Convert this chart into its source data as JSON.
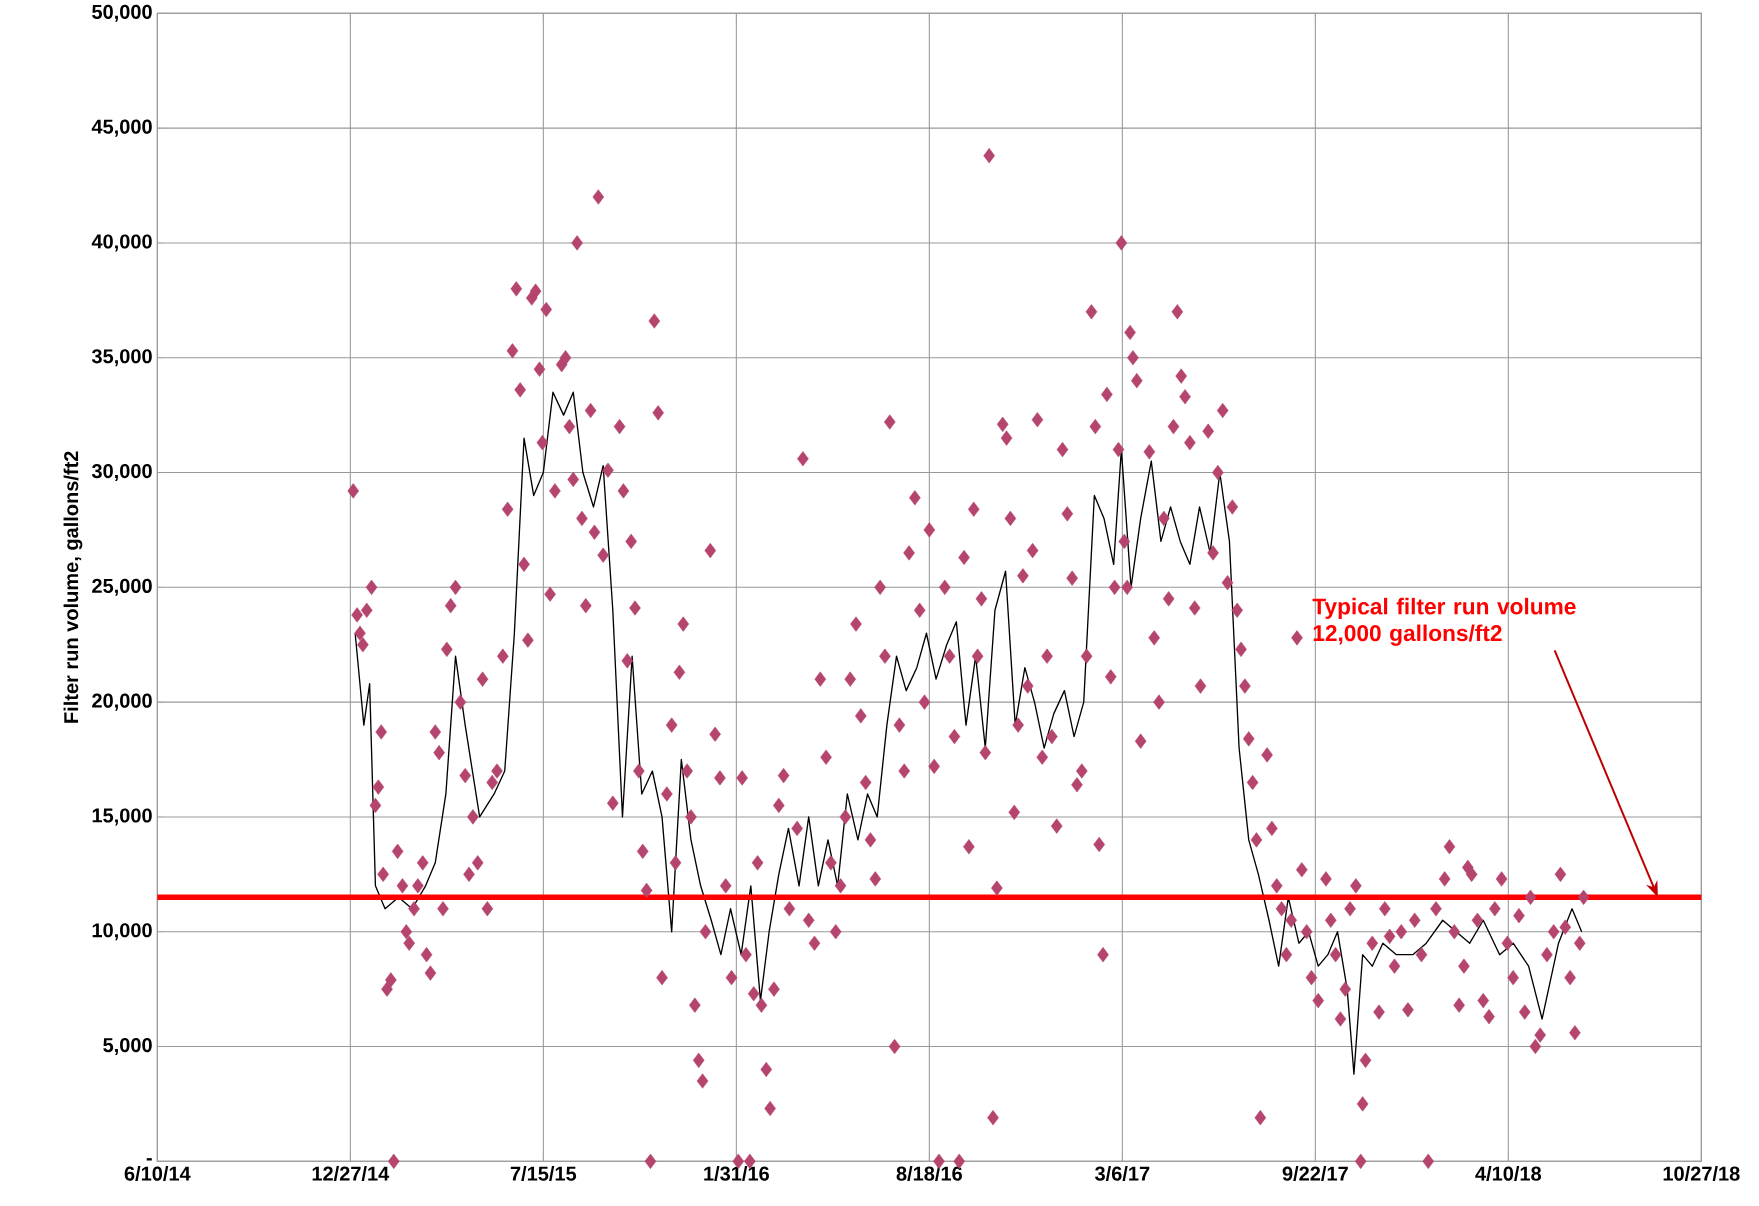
{
  "chart_data": {
    "type": "scatter",
    "ylabel": "Filter run volume, gallons/ft2",
    "xlim": [
      "2014-06-10",
      "2018-10-27"
    ],
    "xticks": [
      {
        "value": "2014-06-10",
        "label": "6/10/14"
      },
      {
        "value": "2014-12-27",
        "label": "12/27/14"
      },
      {
        "value": "2015-07-15",
        "label": "7/15/15"
      },
      {
        "value": "2016-01-31",
        "label": "1/31/16"
      },
      {
        "value": "2016-08-18",
        "label": "8/18/16"
      },
      {
        "value": "2017-03-06",
        "label": "3/6/17"
      },
      {
        "value": "2017-09-22",
        "label": "9/22/17"
      },
      {
        "value": "2018-04-10",
        "label": "4/10/18"
      },
      {
        "value": "2018-10-27",
        "label": "10/27/18"
      }
    ],
    "ylim": [
      0,
      50000
    ],
    "yticks": [
      {
        "value": 0,
        "label": "-"
      },
      {
        "value": 5000,
        "label": "5,000"
      },
      {
        "value": 10000,
        "label": "10,000"
      },
      {
        "value": 15000,
        "label": "15,000"
      },
      {
        "value": 20000,
        "label": "20,000"
      },
      {
        "value": 25000,
        "label": "25,000"
      },
      {
        "value": 30000,
        "label": "30,000"
      },
      {
        "value": 35000,
        "label": "35,000"
      },
      {
        "value": 40000,
        "label": "40,000"
      },
      {
        "value": 45000,
        "label": "45,000"
      },
      {
        "value": 50000,
        "label": "50,000"
      }
    ],
    "grid": true,
    "ref_lines": [
      {
        "axis": "y",
        "value": 11500,
        "label": "Typical filter run volume 12,000 gallons/ft2",
        "color": "#ff0000"
      }
    ],
    "series": [
      {
        "color": "#b5446e",
        "marker": "diamond",
        "x": [
          "2014-12-30",
          "2015-01-03",
          "2015-01-06",
          "2015-01-09",
          "2015-01-13",
          "2015-01-18",
          "2015-01-22",
          "2015-01-25",
          "2015-01-28",
          "2015-01-30",
          "2015-02-03",
          "2015-02-07",
          "2015-02-10",
          "2015-02-14",
          "2015-02-19",
          "2015-02-23",
          "2015-02-26",
          "2015-03-03",
          "2015-03-07",
          "2015-03-12",
          "2015-03-16",
          "2015-03-20",
          "2015-03-25",
          "2015-03-29",
          "2015-04-02",
          "2015-04-06",
          "2015-04-10",
          "2015-04-15",
          "2015-04-20",
          "2015-04-25",
          "2015-04-29",
          "2015-05-03",
          "2015-05-08",
          "2015-05-13",
          "2015-05-18",
          "2015-05-23",
          "2015-05-28",
          "2015-06-03",
          "2015-06-08",
          "2015-06-13",
          "2015-06-17",
          "2015-06-21",
          "2015-06-25",
          "2015-06-29",
          "2015-07-03",
          "2015-07-07",
          "2015-07-11",
          "2015-07-14",
          "2015-07-18",
          "2015-07-22",
          "2015-07-27",
          "2015-08-03",
          "2015-08-07",
          "2015-08-11",
          "2015-08-15",
          "2015-08-19",
          "2015-08-24",
          "2015-08-28",
          "2015-09-02",
          "2015-09-06",
          "2015-09-10",
          "2015-09-15",
          "2015-09-20",
          "2015-09-25",
          "2015-10-02",
          "2015-10-06",
          "2015-10-10",
          "2015-10-14",
          "2015-10-18",
          "2015-10-22",
          "2015-10-26",
          "2015-10-30",
          "2015-11-03",
          "2015-11-07",
          "2015-11-11",
          "2015-11-15",
          "2015-11-20",
          "2015-11-25",
          "2015-11-29",
          "2015-12-03",
          "2015-12-07",
          "2015-12-11",
          "2015-12-15",
          "2015-12-19",
          "2015-12-23",
          "2015-12-27",
          "2015-12-30",
          "2016-01-04",
          "2016-01-09",
          "2016-01-14",
          "2016-01-20",
          "2016-01-26",
          "2016-02-02",
          "2016-02-06",
          "2016-02-10",
          "2016-02-14",
          "2016-02-18",
          "2016-02-22",
          "2016-02-26",
          "2016-03-02",
          "2016-03-06",
          "2016-03-10",
          "2016-03-15",
          "2016-03-20",
          "2016-03-26",
          "2016-04-03",
          "2016-04-09",
          "2016-04-15",
          "2016-04-21",
          "2016-04-27",
          "2016-05-03",
          "2016-05-08",
          "2016-05-13",
          "2016-05-18",
          "2016-05-23",
          "2016-05-28",
          "2016-06-03",
          "2016-06-08",
          "2016-06-13",
          "2016-06-18",
          "2016-06-23",
          "2016-06-28",
          "2016-07-03",
          "2016-07-08",
          "2016-07-13",
          "2016-07-18",
          "2016-07-23",
          "2016-07-28",
          "2016-08-03",
          "2016-08-08",
          "2016-08-13",
          "2016-08-18",
          "2016-08-23",
          "2016-08-28",
          "2016-09-03",
          "2016-09-08",
          "2016-09-13",
          "2016-09-18",
          "2016-09-23",
          "2016-09-28",
          "2016-10-03",
          "2016-10-07",
          "2016-10-11",
          "2016-10-15",
          "2016-10-19",
          "2016-10-23",
          "2016-10-27",
          "2016-11-02",
          "2016-11-06",
          "2016-11-10",
          "2016-11-14",
          "2016-11-18",
          "2016-11-23",
          "2016-11-28",
          "2016-12-03",
          "2016-12-08",
          "2016-12-13",
          "2016-12-18",
          "2016-12-23",
          "2016-12-28",
          "2017-01-03",
          "2017-01-08",
          "2017-01-13",
          "2017-01-18",
          "2017-01-23",
          "2017-01-28",
          "2017-02-02",
          "2017-02-06",
          "2017-02-10",
          "2017-02-14",
          "2017-02-18",
          "2017-02-22",
          "2017-02-26",
          "2017-03-02",
          "2017-03-05",
          "2017-03-08",
          "2017-03-11",
          "2017-03-14",
          "2017-03-17",
          "2017-03-21",
          "2017-03-25",
          "2017-04-03",
          "2017-04-08",
          "2017-04-13",
          "2017-04-18",
          "2017-04-23",
          "2017-04-28",
          "2017-05-02",
          "2017-05-06",
          "2017-05-10",
          "2017-05-15",
          "2017-05-20",
          "2017-05-26",
          "2017-06-03",
          "2017-06-08",
          "2017-06-13",
          "2017-06-18",
          "2017-06-23",
          "2017-06-28",
          "2017-07-03",
          "2017-07-07",
          "2017-07-11",
          "2017-07-15",
          "2017-07-19",
          "2017-07-23",
          "2017-07-27",
          "2017-08-03",
          "2017-08-08",
          "2017-08-13",
          "2017-08-18",
          "2017-08-23",
          "2017-08-28",
          "2017-09-03",
          "2017-09-08",
          "2017-09-13",
          "2017-09-18",
          "2017-09-25",
          "2017-10-03",
          "2017-10-08",
          "2017-10-13",
          "2017-10-18",
          "2017-10-23",
          "2017-10-28",
          "2017-11-03",
          "2017-11-08",
          "2017-11-10",
          "2017-11-13",
          "2017-11-20",
          "2017-11-27",
          "2017-12-03",
          "2017-12-08",
          "2017-12-13",
          "2017-12-20",
          "2017-12-27",
          "2018-01-03",
          "2018-01-10",
          "2018-01-17",
          "2018-01-25",
          "2018-02-03",
          "2018-02-08",
          "2018-02-13",
          "2018-02-18",
          "2018-02-23",
          "2018-02-27",
          "2018-03-03",
          "2018-03-09",
          "2018-03-15",
          "2018-03-21",
          "2018-03-27",
          "2018-04-03",
          "2018-04-09",
          "2018-04-15",
          "2018-04-21",
          "2018-04-27",
          "2018-05-03",
          "2018-05-08",
          "2018-05-13",
          "2018-05-20",
          "2018-05-27",
          "2018-06-03",
          "2018-06-08",
          "2018-06-13",
          "2018-06-18",
          "2018-06-23",
          "2018-06-27"
        ],
        "values": [
          29200,
          23800,
          23000,
          22500,
          24000,
          25000,
          15500,
          16300,
          18700,
          12500,
          7500,
          7900,
          0,
          13500,
          12000,
          10000,
          9500,
          11000,
          12000,
          13000,
          9000,
          8200,
          18700,
          17800,
          11000,
          22300,
          24200,
          25000,
          20000,
          16800,
          12500,
          15000,
          13000,
          21000,
          11000,
          16500,
          17000,
          22000,
          28400,
          35300,
          38000,
          33600,
          26000,
          22700,
          37600,
          37900,
          34500,
          31300,
          37100,
          24700,
          29200,
          34700,
          35000,
          32000,
          29700,
          40000,
          28000,
          24200,
          32700,
          27400,
          42000,
          26400,
          30100,
          15600,
          32000,
          29200,
          21800,
          27000,
          24100,
          17000,
          13500,
          11800,
          0,
          36600,
          32600,
          8000,
          16000,
          19000,
          13000,
          21300,
          23400,
          17000,
          15000,
          6800,
          4400,
          3500,
          10000,
          26600,
          18600,
          16700,
          12000,
          8000,
          0,
          16700,
          9000,
          0,
          7300,
          13000,
          6800,
          4000,
          2300,
          7500,
          15500,
          16800,
          11000,
          14500,
          30600,
          10500,
          9500,
          21000,
          17600,
          13000,
          10000,
          12000,
          15000,
          21000,
          23400,
          19400,
          16500,
          14000,
          12300,
          25000,
          22000,
          32200,
          5000,
          19000,
          17000,
          26500,
          28900,
          24000,
          20000,
          27500,
          17200,
          0,
          25000,
          22000,
          18500,
          0,
          26300,
          13700,
          28400,
          22000,
          24500,
          17800,
          43800,
          1900,
          11900,
          32100,
          31500,
          28000,
          15200,
          19000,
          25500,
          20700,
          26600,
          32300,
          17600,
          22000,
          18500,
          14600,
          31000,
          28200,
          25400,
          16400,
          17000,
          22000,
          37000,
          32000,
          13800,
          9000,
          33400,
          21100,
          25000,
          31000,
          40000,
          27000,
          25000,
          36100,
          35000,
          34000,
          18300,
          30900,
          22800,
          20000,
          28000,
          24500,
          32000,
          37000,
          34200,
          33300,
          31300,
          24100,
          20700,
          31800,
          26500,
          30000,
          32700,
          25200,
          28500,
          24000,
          22300,
          20700,
          18400,
          16500,
          14000,
          1900,
          17700,
          14500,
          12000,
          11000,
          9000,
          10500,
          22800,
          12700,
          10000,
          8000,
          7000,
          12300,
          10500,
          9000,
          6200,
          7500,
          11000,
          12000,
          0,
          2500,
          4400,
          9500,
          6500,
          11000,
          9800,
          8500,
          10000,
          6600,
          10500,
          9000,
          0,
          11000,
          12300,
          13700,
          10000,
          6800,
          8500,
          12800,
          12500,
          10500,
          7000,
          6300,
          11000,
          12300,
          9500,
          8000,
          10700,
          6500,
          11500,
          5000,
          5500,
          9000,
          10000,
          12500,
          10200,
          8000,
          5600,
          9500,
          11500
        ]
      },
      {
        "type": "line",
        "color": "#000000",
        "marker": "none",
        "line_style": "solid",
        "x": [
          "2015-01-01",
          "2015-01-10",
          "2015-01-16",
          "2015-01-22",
          "2015-02-01",
          "2015-02-15",
          "2015-03-01",
          "2015-03-15",
          "2015-03-25",
          "2015-04-05",
          "2015-04-15",
          "2015-04-25",
          "2015-05-10",
          "2015-05-25",
          "2015-06-05",
          "2015-06-15",
          "2015-06-25",
          "2015-07-05",
          "2015-07-15",
          "2015-07-25",
          "2015-08-05",
          "2015-08-15",
          "2015-08-25",
          "2015-09-05",
          "2015-09-15",
          "2015-09-25",
          "2015-10-05",
          "2015-10-15",
          "2015-10-25",
          "2015-11-05",
          "2015-11-15",
          "2015-11-25",
          "2015-12-05",
          "2015-12-15",
          "2015-12-25",
          "2016-01-05",
          "2016-01-15",
          "2016-01-25",
          "2016-02-05",
          "2016-02-15",
          "2016-02-25",
          "2016-03-05",
          "2016-03-15",
          "2016-03-25",
          "2016-04-05",
          "2016-04-15",
          "2016-04-25",
          "2016-05-05",
          "2016-05-15",
          "2016-05-25",
          "2016-06-05",
          "2016-06-15",
          "2016-06-25",
          "2016-07-05",
          "2016-07-15",
          "2016-07-25",
          "2016-08-05",
          "2016-08-15",
          "2016-08-25",
          "2016-09-05",
          "2016-09-15",
          "2016-09-25",
          "2016-10-05",
          "2016-10-15",
          "2016-10-25",
          "2016-11-05",
          "2016-11-15",
          "2016-11-25",
          "2016-12-05",
          "2016-12-15",
          "2016-12-25",
          "2017-01-05",
          "2017-01-15",
          "2017-01-25",
          "2017-02-05",
          "2017-02-15",
          "2017-02-25",
          "2017-03-05",
          "2017-03-15",
          "2017-03-25",
          "2017-04-05",
          "2017-04-15",
          "2017-04-25",
          "2017-05-05",
          "2017-05-15",
          "2017-05-25",
          "2017-06-05",
          "2017-06-15",
          "2017-06-25",
          "2017-07-05",
          "2017-07-15",
          "2017-07-25",
          "2017-08-05",
          "2017-08-15",
          "2017-08-25",
          "2017-09-05",
          "2017-09-15",
          "2017-09-25",
          "2017-10-05",
          "2017-10-15",
          "2017-10-25",
          "2017-11-01",
          "2017-11-10",
          "2017-11-20",
          "2017-12-01",
          "2017-12-15",
          "2018-01-01",
          "2018-01-15",
          "2018-02-01",
          "2018-02-15",
          "2018-03-01",
          "2018-03-15",
          "2018-04-01",
          "2018-04-15",
          "2018-05-01",
          "2018-05-15",
          "2018-06-01",
          "2018-06-15",
          "2018-06-25"
        ],
        "values": [
          23000,
          19000,
          20800,
          12000,
          11000,
          11500,
          11000,
          12000,
          13000,
          16000,
          22000,
          19000,
          15000,
          16000,
          17000,
          23000,
          31500,
          29000,
          30000,
          33500,
          32500,
          33500,
          30000,
          28500,
          30300,
          24000,
          15000,
          22000,
          16000,
          17000,
          15000,
          10000,
          17500,
          14000,
          12000,
          10500,
          9000,
          11000,
          9000,
          12000,
          7000,
          10000,
          12500,
          14500,
          12000,
          15000,
          12000,
          14000,
          12000,
          16000,
          14000,
          16000,
          15000,
          19000,
          22000,
          20500,
          21500,
          23000,
          21000,
          22500,
          23500,
          19000,
          22000,
          18000,
          24000,
          25700,
          19000,
          21500,
          20000,
          18000,
          19500,
          20500,
          18500,
          20000,
          29000,
          28000,
          26000,
          31000,
          25000,
          28000,
          30500,
          27000,
          28500,
          27000,
          26000,
          28500,
          26500,
          30000,
          27000,
          18000,
          14000,
          12500,
          10500,
          8500,
          11500,
          9500,
          10000,
          8500,
          9000,
          10000,
          7500,
          3800,
          9000,
          8500,
          9500,
          9000,
          9000,
          9500,
          10500,
          10000,
          9500,
          10500,
          9000,
          9500,
          8500,
          6200,
          9500,
          11000,
          10000
        ]
      }
    ]
  }
}
